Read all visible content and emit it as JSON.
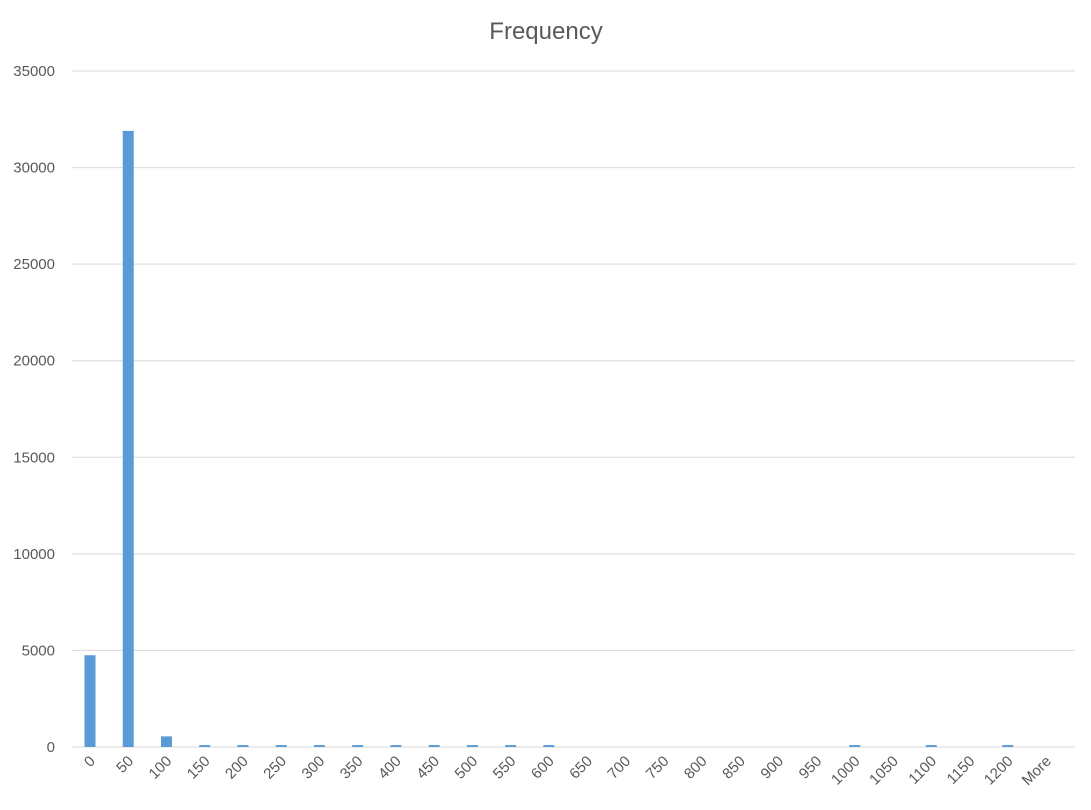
{
  "chart_data": {
    "type": "bar",
    "title": "Frequency",
    "xlabel": "",
    "ylabel": "",
    "ylim": [
      0,
      35000
    ],
    "yticks": [
      0,
      5000,
      10000,
      15000,
      20000,
      25000,
      30000,
      35000
    ],
    "grid": true,
    "legend": "none",
    "categories": [
      "0",
      "50",
      "100",
      "150",
      "200",
      "250",
      "300",
      "350",
      "400",
      "450",
      "500",
      "550",
      "600",
      "650",
      "700",
      "750",
      "800",
      "850",
      "900",
      "950",
      "1000",
      "1050",
      "1100",
      "1150",
      "1200",
      "More"
    ],
    "series": [
      {
        "color": "#5b9bd5",
        "values": [
          4750,
          31900,
          550,
          100,
          100,
          100,
          100,
          100,
          100,
          100,
          100,
          100,
          100,
          0,
          0,
          0,
          0,
          0,
          0,
          0,
          100,
          0,
          100,
          0,
          100,
          0
        ]
      }
    ]
  }
}
